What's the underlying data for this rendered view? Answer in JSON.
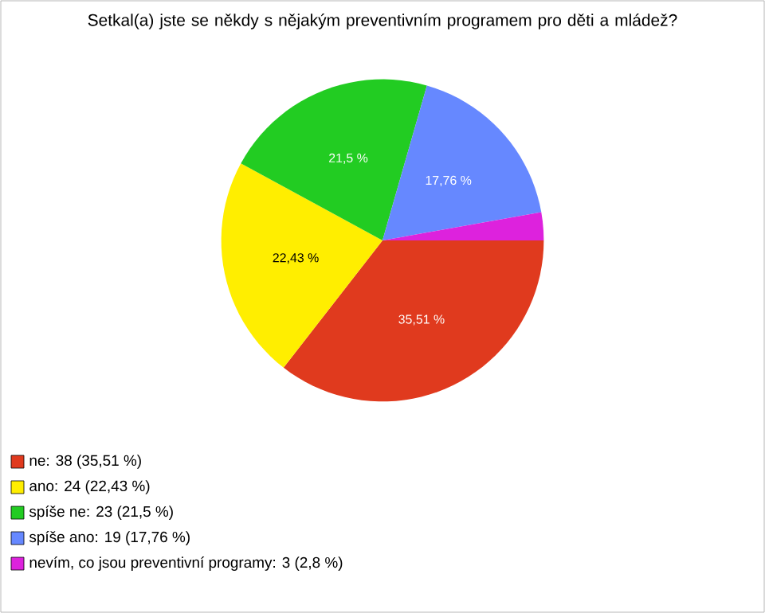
{
  "chart_data": {
    "type": "pie",
    "title": "Setkal(a) jste se někdy s nějakým preventivním programem pro děti a mládež?",
    "categories": [
      "ne: 38 (35,51 %)",
      "ano: 24 (22,43 %)",
      "spíše ne: 23 (21,5 %)",
      "spíše ano: 19 (17,76 %)",
      "nevím, co jsou preventivní programy: 3 (2,8 %)"
    ],
    "values": [
      35.51,
      22.43,
      21.5,
      17.76,
      2.8
    ],
    "colors": [
      "#e03a1e",
      "#ffee00",
      "#22cc22",
      "#6688ff",
      "#dd22dd"
    ],
    "value_labels": [
      "35,51 %",
      "22,43 %",
      "21,5 %",
      "17,76 %",
      null
    ],
    "legend": "bottom left"
  }
}
